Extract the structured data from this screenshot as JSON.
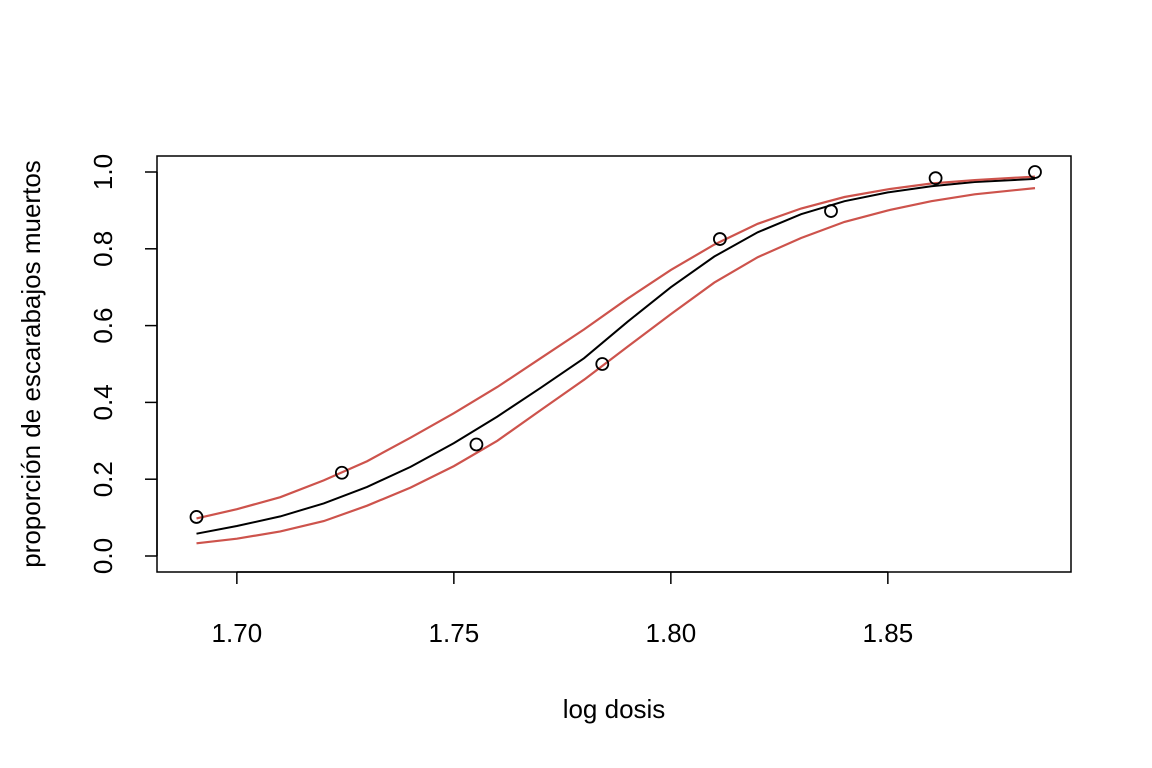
{
  "chart_data": {
    "type": "scatter",
    "title": "",
    "xlabel": "log dosis",
    "ylabel": "proporción de escarabajos muertos",
    "xlim": [
      1.6816,
      1.8922
    ],
    "ylim": [
      0.0,
      1.0
    ],
    "xticks": [
      1.7,
      1.75,
      1.8,
      1.85
    ],
    "xtick_labels": [
      "1.70",
      "1.75",
      "1.80",
      "1.85"
    ],
    "yticks": [
      0.0,
      0.2,
      0.4,
      0.6,
      0.8,
      1.0
    ],
    "ytick_labels": [
      "0.0",
      "0.2",
      "0.4",
      "0.6",
      "0.8",
      "1.0"
    ],
    "grid": false,
    "legend": "none",
    "points": {
      "x": [
        1.6907,
        1.7242,
        1.7552,
        1.7842,
        1.8113,
        1.8369,
        1.861,
        1.8839
      ],
      "y": [
        0.1017,
        0.2167,
        0.2903,
        0.5,
        0.8254,
        0.8983,
        0.9839,
        1.0
      ]
    },
    "series": [
      {
        "role": "fit",
        "color": "#000000",
        "x": [
          1.6907,
          1.7,
          1.71,
          1.72,
          1.73,
          1.74,
          1.75,
          1.76,
          1.77,
          1.78,
          1.79,
          1.8,
          1.81,
          1.82,
          1.83,
          1.84,
          1.85,
          1.86,
          1.87,
          1.8839
        ],
        "y": [
          0.058,
          0.078,
          0.103,
          0.137,
          0.18,
          0.232,
          0.294,
          0.363,
          0.438,
          0.515,
          0.61,
          0.7,
          0.78,
          0.843,
          0.89,
          0.924,
          0.947,
          0.963,
          0.974,
          0.982
        ]
      },
      {
        "role": "upper-band",
        "color": "#cd534c",
        "x": [
          1.6907,
          1.7,
          1.71,
          1.72,
          1.73,
          1.74,
          1.75,
          1.76,
          1.77,
          1.78,
          1.79,
          1.8,
          1.81,
          1.82,
          1.83,
          1.84,
          1.85,
          1.86,
          1.87,
          1.8839
        ],
        "y": [
          0.098,
          0.122,
          0.153,
          0.197,
          0.247,
          0.308,
          0.372,
          0.44,
          0.515,
          0.59,
          0.67,
          0.745,
          0.811,
          0.865,
          0.905,
          0.935,
          0.955,
          0.97,
          0.979,
          0.988
        ]
      },
      {
        "role": "lower-band",
        "color": "#cd534c",
        "x": [
          1.6907,
          1.7,
          1.71,
          1.72,
          1.73,
          1.74,
          1.75,
          1.76,
          1.77,
          1.78,
          1.79,
          1.8,
          1.81,
          1.82,
          1.83,
          1.84,
          1.85,
          1.86,
          1.87,
          1.8839
        ],
        "y": [
          0.033,
          0.045,
          0.064,
          0.091,
          0.131,
          0.178,
          0.234,
          0.3,
          0.38,
          0.459,
          0.545,
          0.63,
          0.712,
          0.778,
          0.828,
          0.87,
          0.9,
          0.924,
          0.942,
          0.958
        ]
      }
    ]
  }
}
